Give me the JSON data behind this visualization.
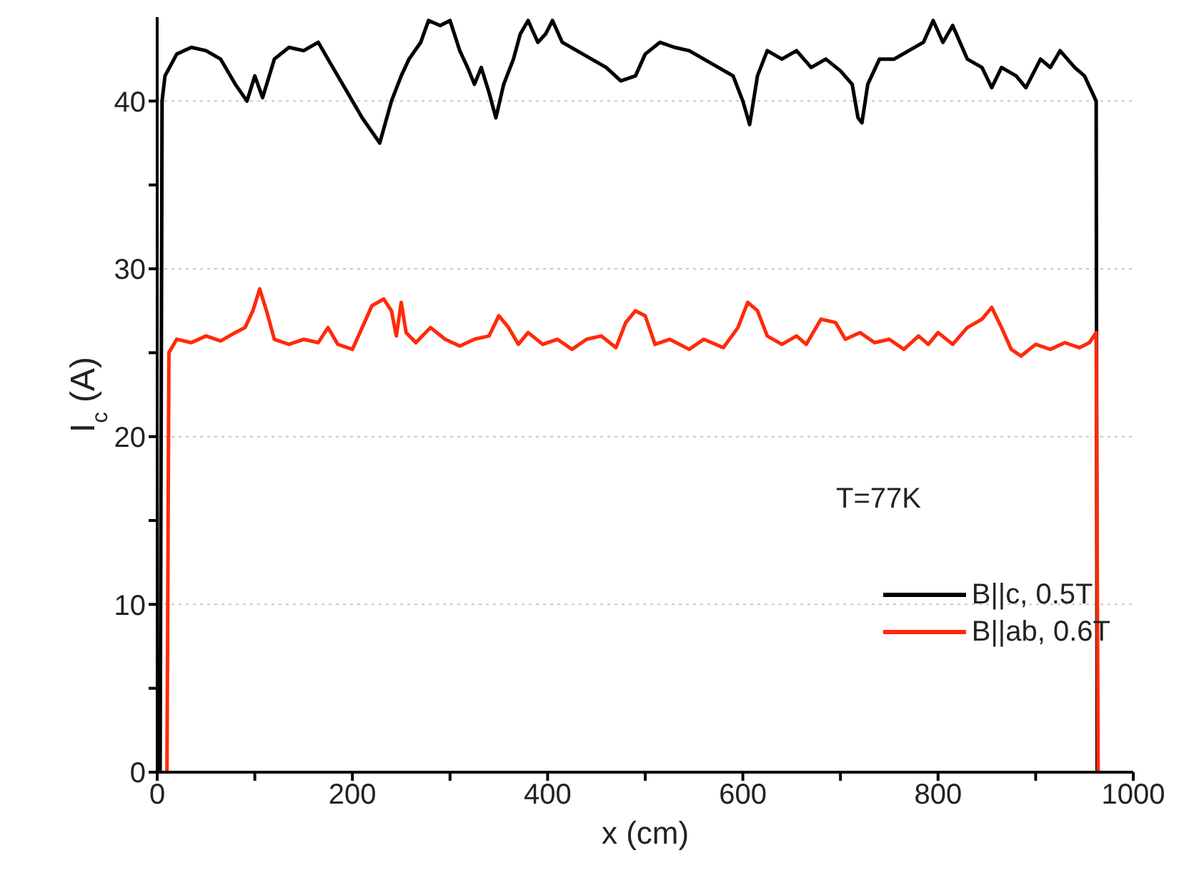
{
  "chart_data": {
    "type": "line",
    "xlabel": "x (cm)",
    "ylabel": "I$_{c}$ (A)",
    "xlim": [
      0,
      1000
    ],
    "ylim": [
      0,
      45
    ],
    "xticks": [
      0,
      {
        "value": 100,
        "label": null
      },
      200,
      {
        "value": 300,
        "label": null
      },
      400,
      {
        "value": 500,
        "label": null
      },
      600,
      {
        "value": 700,
        "label": null
      },
      800,
      {
        "value": 900,
        "label": null
      },
      1000
    ],
    "yticks": [
      0,
      {
        "value": 5,
        "label": null
      },
      10,
      {
        "value": 15,
        "label": null
      },
      20,
      {
        "value": 25,
        "label": null
      },
      30,
      {
        "value": 35,
        "label": null
      },
      40
    ],
    "grid": "y",
    "legend": "bottom right",
    "marker": "none",
    "line_style": "solid",
    "annotations": [
      "T=77K"
    ],
    "series": [
      {
        "name": "B||c, 0.5T",
        "color": "#000000",
        "x": [
          0,
          3,
          5,
          8,
          20,
          35,
          50,
          65,
          80,
          92,
          100,
          108,
          120,
          135,
          150,
          165,
          180,
          195,
          210,
          228,
          240,
          250,
          258,
          270,
          278,
          290,
          300,
          310,
          318,
          325,
          332,
          340,
          347,
          355,
          365,
          372,
          380,
          390,
          398,
          405,
          415,
          430,
          445,
          460,
          475,
          490,
          500,
          515,
          530,
          545,
          560,
          575,
          590,
          600,
          607,
          615,
          625,
          640,
          655,
          670,
          685,
          700,
          712,
          718,
          722,
          728,
          740,
          755,
          770,
          785,
          795,
          805,
          815,
          830,
          845,
          855,
          865,
          880,
          890,
          905,
          915,
          925,
          940,
          950,
          958,
          962,
          963
        ],
        "values": [
          0,
          0,
          40,
          41.5,
          42.8,
          43.2,
          43,
          42.5,
          41,
          40,
          41.5,
          40.2,
          42.5,
          43.2,
          43,
          43.5,
          42,
          40.5,
          39,
          37.5,
          40,
          41.5,
          42.5,
          43.5,
          44.8,
          44.5,
          44.8,
          43,
          42,
          41,
          42,
          40.5,
          39,
          41,
          42.5,
          44,
          44.8,
          43.5,
          44,
          44.8,
          43.5,
          43,
          42.5,
          42,
          41.2,
          41.5,
          42.8,
          43.5,
          43.2,
          43,
          42.5,
          42,
          41.5,
          40,
          38.6,
          41.5,
          43,
          42.5,
          43,
          42,
          42.5,
          41.8,
          41,
          39,
          38.7,
          41,
          42.5,
          42.5,
          43,
          43.5,
          44.8,
          43.5,
          44.5,
          42.5,
          42,
          40.8,
          42,
          41.5,
          40.8,
          42.5,
          42,
          43,
          42,
          41.5,
          40.5,
          40,
          0
        ]
      },
      {
        "name": "B||ab, 0.6T",
        "color": "#ff2a0a",
        "x": [
          8,
          10,
          12,
          20,
          35,
          50,
          65,
          80,
          90,
          98,
          105,
          112,
          120,
          135,
          150,
          165,
          175,
          185,
          200,
          210,
          220,
          232,
          240,
          245,
          250,
          255,
          265,
          280,
          295,
          310,
          325,
          340,
          350,
          360,
          370,
          380,
          395,
          410,
          425,
          440,
          455,
          470,
          480,
          490,
          500,
          510,
          525,
          545,
          560,
          580,
          595,
          605,
          615,
          625,
          640,
          655,
          665,
          680,
          695,
          705,
          720,
          735,
          750,
          765,
          780,
          790,
          800,
          815,
          830,
          845,
          855,
          865,
          875,
          885,
          900,
          915,
          930,
          945,
          955,
          962,
          964
        ],
        "values": [
          0,
          0,
          25,
          25.8,
          25.6,
          26,
          25.7,
          26.2,
          26.5,
          27.5,
          28.8,
          27.5,
          25.8,
          25.5,
          25.8,
          25.6,
          26.5,
          25.5,
          25.2,
          26.5,
          27.8,
          28.2,
          27.5,
          26,
          28,
          26.2,
          25.6,
          26.5,
          25.8,
          25.4,
          25.8,
          26,
          27.2,
          26.5,
          25.5,
          26.2,
          25.5,
          25.8,
          25.2,
          25.8,
          26,
          25.3,
          26.8,
          27.5,
          27.2,
          25.5,
          25.8,
          25.2,
          25.8,
          25.3,
          26.5,
          28,
          27.5,
          26,
          25.5,
          26,
          25.5,
          27,
          26.8,
          25.8,
          26.2,
          25.6,
          25.8,
          25.2,
          26,
          25.5,
          26.2,
          25.5,
          26.5,
          27,
          27.7,
          26.5,
          25.2,
          24.8,
          25.5,
          25.2,
          25.6,
          25.3,
          25.6,
          26.2,
          0
        ]
      }
    ]
  }
}
